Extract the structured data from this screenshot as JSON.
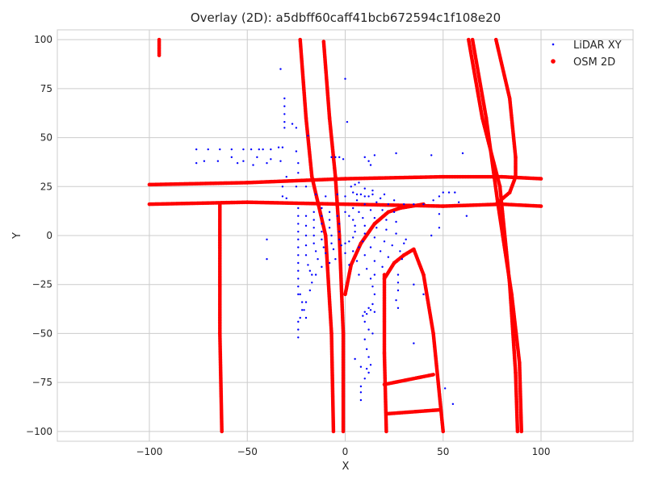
{
  "chart_data": {
    "type": "scatter",
    "title": "Overlay (2D): a5dbff60caff41bcb672594c1f108e20",
    "xlabel": "X",
    "ylabel": "Y",
    "xlim": [
      -147,
      147
    ],
    "ylim": [
      -105,
      105
    ],
    "xticks": [
      -100,
      -50,
      0,
      50,
      100
    ],
    "yticks": [
      -100,
      -75,
      -50,
      -25,
      0,
      25,
      50,
      75,
      100
    ],
    "xtick_labels": [
      "−100",
      "−50",
      "0",
      "50",
      "100"
    ],
    "ytick_labels": [
      "−100",
      "−75",
      "−50",
      "−25",
      "0",
      "25",
      "50",
      "75",
      "100"
    ],
    "grid": true,
    "legend_position": "top-right",
    "colors": {
      "lidar": "#0000ff",
      "osm": "#ff0000",
      "grid": "#cccccc",
      "frame": "#cccccc"
    },
    "series": [
      {
        "name": "LiDAR XY",
        "marker": "dot-small",
        "color": "#0000ff",
        "points": [
          [
            -33,
            85
          ],
          [
            -31,
            70
          ],
          [
            -31,
            66
          ],
          [
            -31,
            62
          ],
          [
            -31,
            58
          ],
          [
            -31,
            55
          ],
          [
            -27,
            57
          ],
          [
            -25,
            55
          ],
          [
            -19,
            51
          ],
          [
            0,
            80
          ],
          [
            1,
            58
          ],
          [
            -76,
            44
          ],
          [
            -70,
            44
          ],
          [
            -64,
            44
          ],
          [
            -58,
            44
          ],
          [
            -52,
            44
          ],
          [
            -48,
            44
          ],
          [
            -44,
            44
          ],
          [
            -42,
            44
          ],
          [
            -38,
            44
          ],
          [
            -34,
            45
          ],
          [
            -32,
            45
          ],
          [
            -76,
            37
          ],
          [
            -72,
            38
          ],
          [
            -65,
            38
          ],
          [
            -58,
            40
          ],
          [
            -55,
            37
          ],
          [
            -52,
            38
          ],
          [
            -47,
            36
          ],
          [
            -45,
            40
          ],
          [
            -40,
            37
          ],
          [
            -38,
            39
          ],
          [
            -33,
            38
          ],
          [
            -25,
            43
          ],
          [
            -24,
            37
          ],
          [
            -24,
            32
          ],
          [
            -7,
            40
          ],
          [
            -5,
            40
          ],
          [
            -3,
            40
          ],
          [
            -1,
            39
          ],
          [
            10,
            40
          ],
          [
            12,
            38
          ],
          [
            13,
            36
          ],
          [
            15,
            41
          ],
          [
            26,
            42
          ],
          [
            44,
            41
          ],
          [
            60,
            42
          ],
          [
            -30,
            30
          ],
          [
            -32,
            25
          ],
          [
            -32,
            20
          ],
          [
            -30,
            19
          ],
          [
            -25,
            25
          ],
          [
            -20,
            25
          ],
          [
            -15,
            21
          ],
          [
            -10,
            20
          ],
          [
            -4,
            21
          ],
          [
            0,
            20
          ],
          [
            4,
            22
          ],
          [
            6,
            21
          ],
          [
            10,
            20
          ],
          [
            14,
            23
          ],
          [
            20,
            21
          ],
          [
            25,
            18
          ],
          [
            30,
            16
          ],
          [
            35,
            16
          ],
          [
            40,
            16
          ],
          [
            45,
            18
          ],
          [
            48,
            20
          ],
          [
            50,
            22
          ],
          [
            53,
            22
          ],
          [
            56,
            22
          ],
          [
            48,
            11
          ],
          [
            58,
            17
          ],
          [
            62,
            10
          ],
          [
            -24,
            14
          ],
          [
            -24,
            10
          ],
          [
            -24,
            6
          ],
          [
            -24,
            2
          ],
          [
            -24,
            -2
          ],
          [
            -24,
            -6
          ],
          [
            -24,
            -10
          ],
          [
            -24,
            -14
          ],
          [
            -24,
            -18
          ],
          [
            -24,
            -22
          ],
          [
            -24,
            -26
          ],
          [
            -23,
            -30
          ],
          [
            -22,
            -34
          ],
          [
            -21,
            -38
          ],
          [
            -20,
            -42
          ],
          [
            -20,
            10
          ],
          [
            -20,
            5
          ],
          [
            -20,
            0
          ],
          [
            -20,
            -5
          ],
          [
            -20,
            -10
          ],
          [
            -19,
            -15
          ],
          [
            -18,
            -18
          ],
          [
            -17,
            -20
          ],
          [
            -16,
            12
          ],
          [
            -16,
            8
          ],
          [
            -16,
            4
          ],
          [
            -16,
            0
          ],
          [
            -16,
            -4
          ],
          [
            -15,
            -8
          ],
          [
            -14,
            -12
          ],
          [
            -12,
            14
          ],
          [
            -12,
            10
          ],
          [
            -12,
            6
          ],
          [
            -12,
            2
          ],
          [
            -12,
            -2
          ],
          [
            -11,
            -6
          ],
          [
            -10,
            -9
          ],
          [
            -8,
            12
          ],
          [
            -8,
            8
          ],
          [
            -8,
            4
          ],
          [
            -7,
            0
          ],
          [
            -7,
            -4
          ],
          [
            -6,
            -7
          ],
          [
            -4,
            10
          ],
          [
            -3,
            6
          ],
          [
            -3,
            2
          ],
          [
            -3,
            -2
          ],
          [
            -2,
            -5
          ],
          [
            0,
            12
          ],
          [
            2,
            10
          ],
          [
            4,
            8
          ],
          [
            5,
            5
          ],
          [
            5,
            2
          ],
          [
            4,
            -1
          ],
          [
            2,
            -3
          ],
          [
            0,
            -4
          ],
          [
            4,
            14
          ],
          [
            7,
            12
          ],
          [
            9,
            9
          ],
          [
            10,
            5
          ],
          [
            10,
            1
          ],
          [
            9,
            -3
          ],
          [
            7,
            -6
          ],
          [
            4,
            -8
          ],
          [
            0,
            -9
          ],
          [
            6,
            18
          ],
          [
            10,
            16
          ],
          [
            13,
            13
          ],
          [
            15,
            9
          ],
          [
            16,
            4
          ],
          [
            15,
            -1
          ],
          [
            13,
            -6
          ],
          [
            10,
            -10
          ],
          [
            6,
            -13
          ],
          [
            2,
            -15
          ],
          [
            8,
            21
          ],
          [
            12,
            20
          ],
          [
            16,
            17
          ],
          [
            19,
            13
          ],
          [
            21,
            8
          ],
          [
            21,
            3
          ],
          [
            20,
            -3
          ],
          [
            18,
            -8
          ],
          [
            15,
            -13
          ],
          [
            11,
            -17
          ],
          [
            7,
            -20
          ],
          [
            3,
            25
          ],
          [
            5,
            26
          ],
          [
            7,
            27
          ],
          [
            10,
            24
          ],
          [
            14,
            21
          ],
          [
            18,
            19
          ],
          [
            22,
            16
          ],
          [
            25,
            12
          ],
          [
            26,
            7
          ],
          [
            26,
            1
          ],
          [
            24,
            -5
          ],
          [
            22,
            -11
          ],
          [
            19,
            -16
          ],
          [
            15,
            -20
          ],
          [
            13,
            -22
          ],
          [
            14,
            -26
          ],
          [
            15,
            -30
          ],
          [
            14,
            -35
          ],
          [
            15,
            -39
          ],
          [
            13,
            -38
          ],
          [
            12,
            -37
          ],
          [
            11,
            -40
          ],
          [
            10,
            -39
          ],
          [
            9,
            -41
          ],
          [
            10,
            -44
          ],
          [
            12,
            -48
          ],
          [
            14,
            -50
          ],
          [
            10,
            -53
          ],
          [
            11,
            -58
          ],
          [
            12,
            -62
          ],
          [
            13,
            -66
          ],
          [
            12,
            -70
          ],
          [
            10,
            -73
          ],
          [
            5,
            -63
          ],
          [
            8,
            -67
          ],
          [
            11,
            -68
          ],
          [
            8,
            -77
          ],
          [
            8,
            -80
          ],
          [
            8,
            -84
          ],
          [
            -40,
            -2
          ],
          [
            -40,
            -12
          ],
          [
            -24,
            -48
          ],
          [
            -24,
            -52
          ],
          [
            27,
            -20
          ],
          [
            27,
            -24
          ],
          [
            27,
            -28
          ],
          [
            26,
            -33
          ],
          [
            27,
            -37
          ],
          [
            29,
            -12
          ],
          [
            28,
            -8
          ],
          [
            30,
            -4
          ],
          [
            31,
            -2
          ],
          [
            44,
            0
          ],
          [
            48,
            4
          ],
          [
            35,
            -25
          ],
          [
            35,
            -55
          ],
          [
            40,
            -30
          ],
          [
            51,
            -78
          ],
          [
            55,
            -86
          ],
          [
            -22,
            -38
          ],
          [
            -23,
            -42
          ],
          [
            -24,
            -44
          ],
          [
            -24,
            -30
          ],
          [
            -20,
            -34
          ],
          [
            -18,
            -28
          ],
          [
            -17,
            -24
          ],
          [
            -15,
            -20
          ],
          [
            -12,
            -16
          ],
          [
            -8,
            -14
          ],
          [
            -5,
            -12
          ]
        ]
      },
      {
        "name": "OSM 2D",
        "marker": "dot",
        "color": "#ff0000",
        "polylines": [
          [
            [
              -95,
              100
            ],
            [
              -95,
              92
            ]
          ],
          [
            [
              -23,
              100
            ],
            [
              -20,
              60
            ],
            [
              -17,
              30
            ],
            [
              -10,
              0
            ],
            [
              -7,
              -50
            ],
            [
              -6,
              -100
            ]
          ],
          [
            [
              -11,
              99
            ],
            [
              -8,
              60
            ],
            [
              -5,
              30
            ],
            [
              -3,
              0
            ],
            [
              -1,
              -50
            ],
            [
              -1,
              -100
            ]
          ],
          [
            [
              -100,
              26
            ],
            [
              -50,
              27
            ],
            [
              0,
              29
            ],
            [
              50,
              30
            ],
            [
              80,
              30
            ],
            [
              100,
              29
            ]
          ],
          [
            [
              -100,
              16
            ],
            [
              -50,
              17
            ],
            [
              0,
              16
            ],
            [
              50,
              15
            ],
            [
              80,
              16
            ],
            [
              100,
              15
            ]
          ],
          [
            [
              -64,
              16
            ],
            [
              -64,
              -50
            ],
            [
              -63,
              -100
            ]
          ],
          [
            [
              63,
              100
            ],
            [
              70,
              60
            ],
            [
              79,
              25
            ],
            [
              84,
              -25
            ],
            [
              87,
              -70
            ],
            [
              88,
              -100
            ]
          ],
          [
            [
              77,
              100
            ],
            [
              84,
              70
            ],
            [
              87,
              40
            ],
            [
              87,
              30
            ],
            [
              84,
              22
            ],
            [
              77,
              16
            ]
          ],
          [
            [
              65,
              100
            ],
            [
              72,
              60
            ],
            [
              78,
              16
            ],
            [
              85,
              -30
            ],
            [
              89,
              -65
            ],
            [
              90,
              -100
            ]
          ],
          [
            [
              0,
              -30
            ],
            [
              3,
              -15
            ],
            [
              8,
              -4
            ],
            [
              15,
              6
            ],
            [
              22,
              12
            ],
            [
              28,
              14
            ],
            [
              40,
              16
            ]
          ],
          [
            [
              20,
              -22
            ],
            [
              25,
              -14
            ],
            [
              30,
              -10
            ],
            [
              35,
              -7
            ],
            [
              40,
              -20
            ],
            [
              45,
              -50
            ],
            [
              50,
              -100
            ]
          ],
          [
            [
              20,
              -20
            ],
            [
              20,
              -60
            ],
            [
              21,
              -100
            ]
          ],
          [
            [
              20,
              -76
            ],
            [
              45,
              -71
            ]
          ],
          [
            [
              21,
              -91
            ],
            [
              48,
              -89
            ]
          ]
        ]
      }
    ]
  }
}
